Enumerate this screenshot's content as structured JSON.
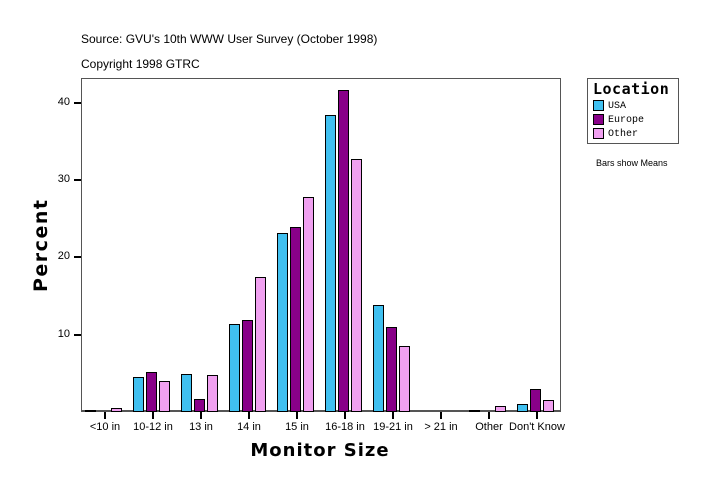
{
  "header": {
    "source": "Source: GVU's 10th WWW User Survey (October 1998)",
    "copyright": "Copyright 1998 GTRC"
  },
  "note": "Bars show Means",
  "chart_data": {
    "type": "bar",
    "title": "Source: GVU's 10th WWW User Survey (October 1998)",
    "subtitle": "Copyright 1998 GTRC",
    "xlabel": "Monitor Size",
    "ylabel": "Percent",
    "ylim": [
      0,
      43
    ],
    "yticks": [
      10,
      20,
      30,
      40
    ],
    "grid": false,
    "legend_title": "Location",
    "legend_position": "right",
    "annotation": "Bars show Means",
    "categories": [
      "<10 in",
      "10-12 in",
      "13 in",
      "14 in",
      "15 in",
      "16-18 in",
      "19-21 in",
      "> 21 in",
      "Other",
      "Don't Know"
    ],
    "series": [
      {
        "name": "USA",
        "color": "#40c0f0",
        "values": [
          0.1,
          4.5,
          4.9,
          11.4,
          23.2,
          38.4,
          13.8,
          0.0,
          0.3,
          1.0
        ]
      },
      {
        "name": "Europe",
        "color": "#880088",
        "values": [
          0.0,
          5.2,
          1.7,
          11.9,
          23.9,
          41.7,
          11.0,
          0.0,
          0.0,
          3.0
        ]
      },
      {
        "name": "Other",
        "color": "#f0a0f0",
        "values": [
          0.5,
          4.0,
          4.8,
          17.5,
          27.8,
          32.7,
          8.5,
          0.0,
          0.8,
          1.6
        ]
      }
    ]
  }
}
